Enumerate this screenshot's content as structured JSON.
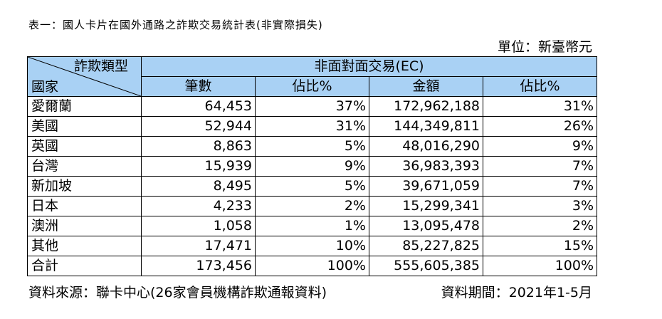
{
  "title": "表一：國人卡片在國外通路之詐欺交易統計表(非實際損失)",
  "unit": "單位：新臺幣元",
  "header": {
    "fraud_type": "詐欺類型",
    "country": "國家",
    "group": "非面對面交易(EC)",
    "columns": [
      "筆數",
      "佔比%",
      "金額",
      "佔比%"
    ]
  },
  "rows": [
    {
      "country": "愛爾蘭",
      "count": "64,453",
      "count_pct": "37%",
      "amount": "172,962,188",
      "amount_pct": "31%"
    },
    {
      "country": "美國",
      "count": "52,944",
      "count_pct": "31%",
      "amount": "144,349,811",
      "amount_pct": "26%"
    },
    {
      "country": "英國",
      "count": "8,863",
      "count_pct": "5%",
      "amount": "48,016,290",
      "amount_pct": "9%"
    },
    {
      "country": "台灣",
      "count": "15,939",
      "count_pct": "9%",
      "amount": "36,983,393",
      "amount_pct": "7%"
    },
    {
      "country": "新加坡",
      "count": "8,495",
      "count_pct": "5%",
      "amount": "39,671,059",
      "amount_pct": "7%"
    },
    {
      "country": "日本",
      "count": "4,233",
      "count_pct": "2%",
      "amount": "15,299,341",
      "amount_pct": "3%"
    },
    {
      "country": "澳洲",
      "count": "1,058",
      "count_pct": "1%",
      "amount": "13,095,478",
      "amount_pct": "2%"
    },
    {
      "country": "其他",
      "count": "17,471",
      "count_pct": "10%",
      "amount": "85,227,825",
      "amount_pct": "15%"
    },
    {
      "country": "合計",
      "count": "173,456",
      "count_pct": "100%",
      "amount": "555,605,385",
      "amount_pct": "100%"
    }
  ],
  "footer": {
    "source": "資料來源：聯卡中心(26家會員機構詐欺通報資料)",
    "period": "資料期間：2021年1-5月"
  },
  "colors": {
    "header_background": "#a9d1f4"
  }
}
